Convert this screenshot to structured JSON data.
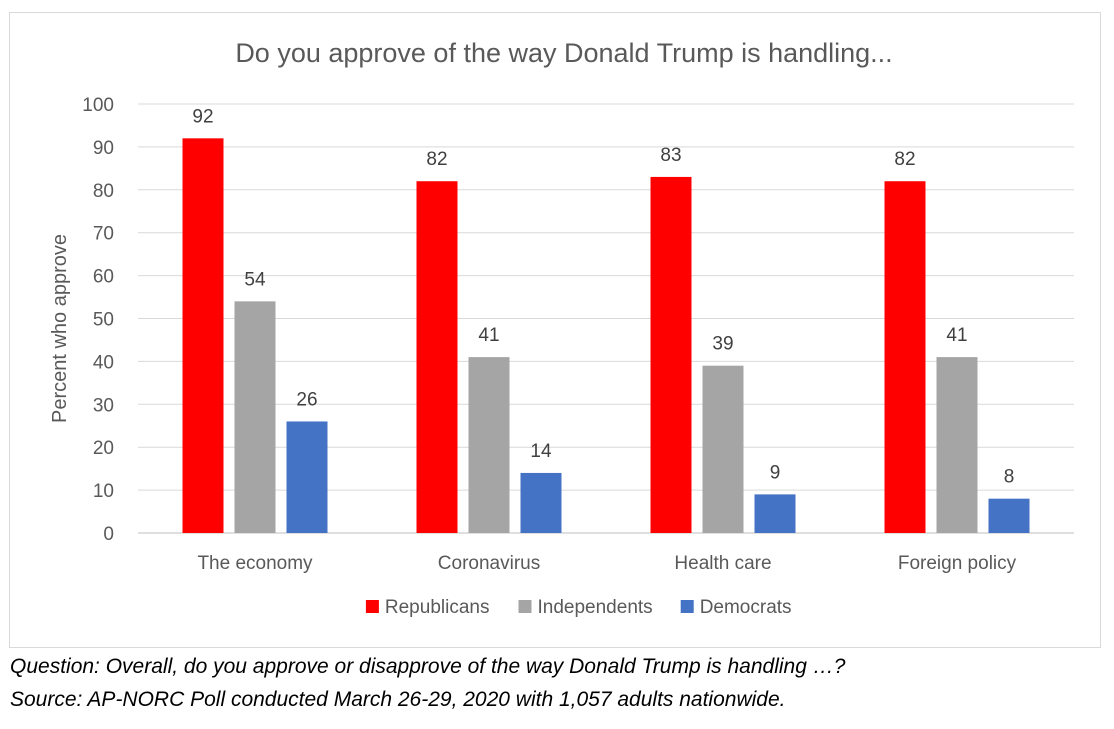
{
  "chart_data": {
    "type": "bar",
    "title": "Do you approve of the way Donald Trump is handling...",
    "xlabel": "",
    "ylabel": "Percent who approve",
    "ylim": [
      0,
      100
    ],
    "yticks": [
      0,
      10,
      20,
      30,
      40,
      50,
      60,
      70,
      80,
      90,
      100
    ],
    "grid": true,
    "legend_position": "bottom",
    "categories": [
      "The economy",
      "Coronavirus",
      "Health care",
      "Foreign policy"
    ],
    "series": [
      {
        "name": "Republicans",
        "color": "#ff0000",
        "values": [
          92,
          82,
          83,
          82
        ]
      },
      {
        "name": "Independents",
        "color": "#a5a5a5",
        "values": [
          54,
          41,
          39,
          41
        ]
      },
      {
        "name": "Democrats",
        "color": "#4472c4",
        "values": [
          26,
          14,
          9,
          8
        ]
      }
    ]
  },
  "notes": {
    "question": "Question: Overall, do you approve or disapprove of the way Donald Trump is handling …?",
    "source": "Source: AP-NORC Poll conducted March 26-29, 2020 with 1,057 adults nationwide."
  }
}
